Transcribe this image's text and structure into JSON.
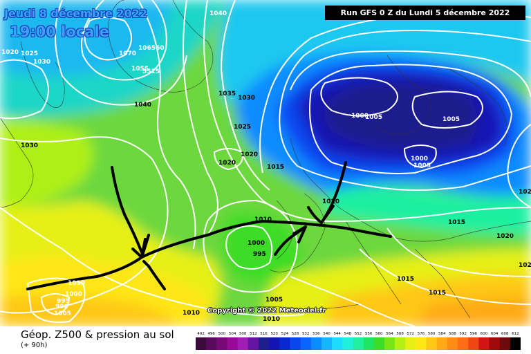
{
  "header": {
    "date": "Jeudi 8 décembre 2022",
    "time": "19:00 locale",
    "run": "Run GFS 0 Z du Lundi 5 décembre 2022"
  },
  "copyright": "Copyright © 2022 Meteociel.fr",
  "legend": {
    "title": "Géop. Z500 & pression au sol",
    "subtitle": "(+ 90h)",
    "ticks": [
      "492",
      "496",
      "500",
      "504",
      "508",
      "512",
      "516",
      "520",
      "524",
      "528",
      "532",
      "536",
      "540",
      "544",
      "548",
      "552",
      "556",
      "560",
      "564",
      "568",
      "572",
      "576",
      "580",
      "584",
      "588",
      "592",
      "596",
      "600",
      "604",
      "608",
      "612"
    ],
    "colors": [
      "#3c0a3c",
      "#5a0a5a",
      "#780a78",
      "#960a96",
      "#a01eb4",
      "#6414a0",
      "#1e1e8c",
      "#1414b4",
      "#0a28d2",
      "#0a46f0",
      "#0a64ff",
      "#0a8cff",
      "#14b4ff",
      "#1edcff",
      "#1ef0dc",
      "#1ef0a0",
      "#1ee664",
      "#3cdc28",
      "#78e614",
      "#b4f014",
      "#e6f014",
      "#ffe614",
      "#ffc814",
      "#ffaa14",
      "#ff8c14",
      "#ff6e14",
      "#f04614",
      "#d21414",
      "#a00a0a",
      "#6e0a0a",
      "#000000"
    ]
  },
  "isobar_labels": [
    {
      "text": "1040",
      "color": "white"
    },
    {
      "text": "1070",
      "color": "white"
    },
    {
      "text": "106560",
      "color": "white"
    },
    {
      "text": "1055",
      "color": "white"
    },
    {
      "text": "5515",
      "color": "white"
    },
    {
      "text": "1020",
      "color": "white"
    },
    {
      "text": "1025",
      "color": "white"
    },
    {
      "text": "1030",
      "color": "white"
    },
    {
      "text": "1040",
      "color": "dark"
    },
    {
      "text": "1035",
      "color": "dark"
    },
    {
      "text": "1030",
      "color": "dark"
    },
    {
      "text": "1025",
      "color": "dark"
    },
    {
      "text": "1030",
      "color": "dark"
    },
    {
      "text": "1020",
      "color": "dark"
    },
    {
      "text": "1020",
      "color": "dark"
    },
    {
      "text": "1015",
      "color": "dark"
    },
    {
      "text": "1000",
      "color": "white"
    },
    {
      "text": "1005",
      "color": "white"
    },
    {
      "text": "1005",
      "color": "white"
    },
    {
      "text": "1000",
      "color": "white"
    },
    {
      "text": "1005",
      "color": "white"
    },
    {
      "text": "1010",
      "color": "dark"
    },
    {
      "text": "1010",
      "color": "dark"
    },
    {
      "text": "1000",
      "color": "dark"
    },
    {
      "text": "995",
      "color": "dark"
    },
    {
      "text": "1005",
      "color": "dark"
    },
    {
      "text": "1010",
      "color": "dark"
    },
    {
      "text": "1010",
      "color": "dark"
    },
    {
      "text": "1015",
      "color": "dark"
    },
    {
      "text": "1015",
      "color": "dark"
    },
    {
      "text": "1015",
      "color": "dark"
    },
    {
      "text": "1020",
      "color": "dark"
    },
    {
      "text": "102",
      "color": "dark"
    },
    {
      "text": "102",
      "color": "dark"
    },
    {
      "text": "1000",
      "color": "white"
    },
    {
      "text": "995",
      "color": "white"
    },
    {
      "text": "990",
      "color": "white"
    },
    {
      "text": "1005",
      "color": "white"
    },
    {
      "text": "1010",
      "color": "white"
    }
  ]
}
